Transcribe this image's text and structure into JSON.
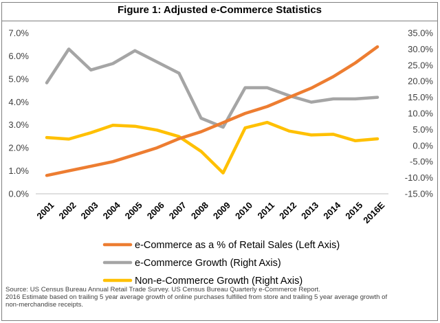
{
  "chart_data": {
    "type": "line",
    "title": "Figure 1: Adjusted e-Commerce Statistics",
    "categories": [
      "2001",
      "2002",
      "2003",
      "2004",
      "2005",
      "2006",
      "2007",
      "2008",
      "2009",
      "2010",
      "2011",
      "2012",
      "2013",
      "2014",
      "2015",
      "2016E"
    ],
    "left_axis": {
      "ylim": [
        0,
        7
      ],
      "ticks": [
        "0.0%",
        "1.0%",
        "2.0%",
        "3.0%",
        "4.0%",
        "5.0%",
        "6.0%",
        "7.0%"
      ]
    },
    "right_axis": {
      "ylim": [
        -15,
        35
      ],
      "ticks": [
        "-15.0%",
        "-10.0%",
        "-5.0%",
        "0.0%",
        "5.0%",
        "10.0%",
        "15.0%",
        "20.0%",
        "25.0%",
        "30.0%",
        "35.0%"
      ]
    },
    "series": [
      {
        "name": "e-Commerce as a % of Retail Sales (Left Axis)",
        "axis": "left",
        "color": "#ED7D31",
        "values": [
          0.8,
          1.0,
          1.2,
          1.4,
          1.7,
          2.0,
          2.4,
          2.7,
          3.1,
          3.5,
          3.8,
          4.2,
          4.6,
          5.1,
          5.7,
          6.4
        ]
      },
      {
        "name": "e-Commerce Growth (Right Axis)",
        "axis": "right",
        "color": "#A5A5A5",
        "values": [
          19.5,
          30.0,
          23.5,
          25.5,
          29.5,
          26.0,
          22.5,
          8.5,
          5.7,
          18.0,
          18.0,
          15.5,
          13.5,
          14.5,
          14.5,
          15.0
        ]
      },
      {
        "name": "Non-e-Commerce Growth (Right Axis)",
        "axis": "right",
        "color": "#FFC000",
        "values": [
          2.5,
          2.0,
          4.0,
          6.3,
          6.0,
          4.8,
          2.8,
          -1.8,
          -8.5,
          5.5,
          7.2,
          4.5,
          3.3,
          3.5,
          1.5,
          2.1
        ]
      }
    ],
    "grid": false,
    "legend_position": "bottom"
  },
  "source_notes": [
    "Source: US Census Bureau Annual Retail Trade Survey.  US Census Bureau Quarterly e-Commerce Report.",
    "2016 Estimate based on trailing 5 year average growth of online purchases fulfilled from store and trailing 5 year average growth of",
    "non-merchandise receipts."
  ]
}
